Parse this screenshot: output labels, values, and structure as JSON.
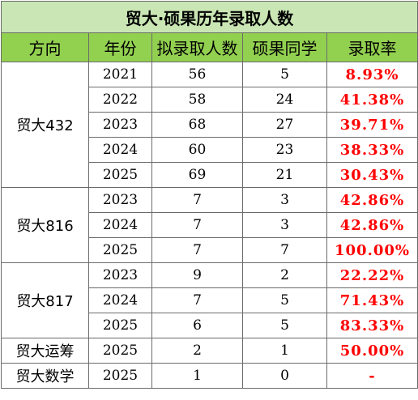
{
  "title": "贸大·硕果历年录取人数",
  "headers": [
    "方向",
    "年份",
    "拟录取人数",
    "硕果同学",
    "录取率"
  ],
  "groups": [
    {
      "direction": "贸大432",
      "rows": [
        {
          "year": "2021",
          "admitted": "56",
          "students": "5",
          "rate": "8.93%"
        },
        {
          "year": "2022",
          "admitted": "58",
          "students": "24",
          "rate": "41.38%"
        },
        {
          "year": "2023",
          "admitted": "68",
          "students": "27",
          "rate": "39.71%"
        },
        {
          "year": "2024",
          "admitted": "60",
          "students": "23",
          "rate": "38.33%"
        },
        {
          "year": "2025",
          "admitted": "69",
          "students": "21",
          "rate": "30.43%"
        }
      ]
    },
    {
      "direction": "贸大816",
      "rows": [
        {
          "year": "2023",
          "admitted": "7",
          "students": "3",
          "rate": "42.86%"
        },
        {
          "year": "2024",
          "admitted": "7",
          "students": "3",
          "rate": "42.86%"
        },
        {
          "year": "2025",
          "admitted": "7",
          "students": "7",
          "rate": "100.00%"
        }
      ]
    },
    {
      "direction": "贸大817",
      "rows": [
        {
          "year": "2023",
          "admitted": "9",
          "students": "2",
          "rate": "22.22%"
        },
        {
          "year": "2024",
          "admitted": "7",
          "students": "5",
          "rate": "71.43%"
        },
        {
          "year": "2025",
          "admitted": "6",
          "students": "5",
          "rate": "83.33%"
        }
      ]
    },
    {
      "direction": "贸大运筹",
      "rows": [
        {
          "year": "2025",
          "admitted": "2",
          "students": "1",
          "rate": "50.00%"
        }
      ]
    },
    {
      "direction": "贸大数学",
      "rows": [
        {
          "year": "2025",
          "admitted": "1",
          "students": "0",
          "rate": "-"
        }
      ]
    }
  ],
  "colors": {
    "title_bg": "#c9e6b4",
    "header_bg": "#92d050",
    "rate_text": "#ff0000"
  }
}
